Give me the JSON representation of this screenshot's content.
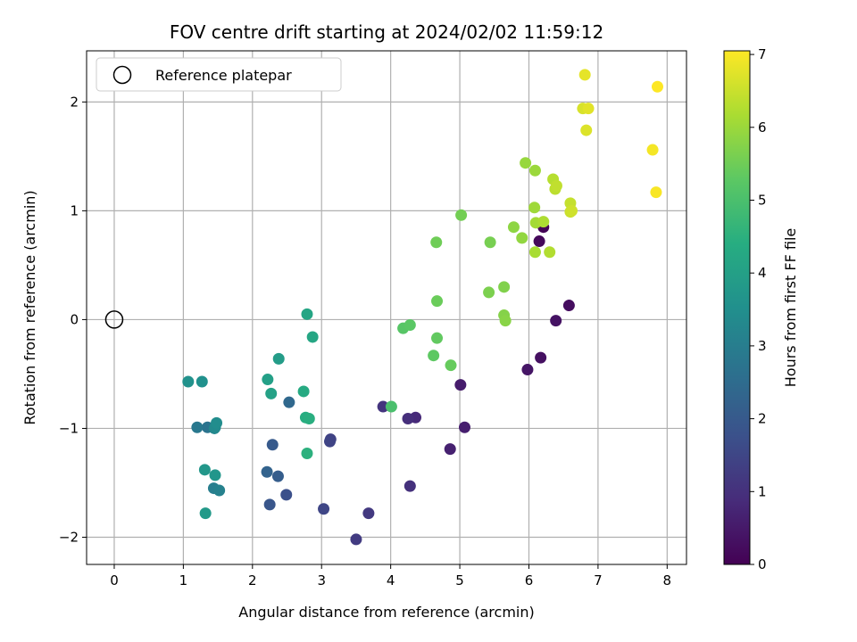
{
  "chart_data": {
    "type": "scatter",
    "title": "FOV centre drift starting at 2024/02/02 11:59:12",
    "xlabel": "Angular distance from reference (arcmin)",
    "ylabel": "Rotation from reference (arcmin)",
    "xlim": [
      -0.4,
      8.28
    ],
    "ylim": [
      -2.25,
      2.47
    ],
    "xticks": [
      0,
      1,
      2,
      3,
      4,
      5,
      6,
      7,
      8
    ],
    "yticks": [
      -2,
      -1,
      0,
      1,
      2
    ],
    "xtick_labels": [
      "0",
      "1",
      "2",
      "3",
      "4",
      "5",
      "6",
      "7",
      "8"
    ],
    "ytick_labels": [
      "−2",
      "−1",
      "0",
      "1",
      "2"
    ],
    "grid": true,
    "colormap": "viridis",
    "colorbar": {
      "label": "Hours from first FF file",
      "range": [
        0,
        7.05
      ],
      "ticks": [
        0,
        1,
        2,
        3,
        4,
        5,
        6,
        7
      ],
      "tick_labels": [
        "0",
        "1",
        "2",
        "3",
        "4",
        "5",
        "6",
        "7"
      ]
    },
    "legend": {
      "position": "upper-left",
      "entries": [
        {
          "label": "Reference platepar",
          "marker": "open-circle"
        }
      ]
    },
    "reference_point": {
      "x": 0,
      "y": 0,
      "label": "Reference platepar"
    },
    "series": [
      {
        "points": [
          {
            "x": 6.21,
            "y": 0.85,
            "c": 0.05
          },
          {
            "x": 6.15,
            "y": 0.72,
            "c": 0.15
          },
          {
            "x": 6.58,
            "y": 0.13,
            "c": 0.25
          },
          {
            "x": 6.39,
            "y": -0.01,
            "c": 0.35
          },
          {
            "x": 6.17,
            "y": -0.35,
            "c": 0.3
          },
          {
            "x": 5.98,
            "y": -0.46,
            "c": 0.4
          },
          {
            "x": 5.01,
            "y": -0.6,
            "c": 0.55
          },
          {
            "x": 5.07,
            "y": -0.99,
            "c": 0.6
          },
          {
            "x": 4.86,
            "y": -1.19,
            "c": 0.65
          },
          {
            "x": 4.36,
            "y": -0.9,
            "c": 0.85
          },
          {
            "x": 4.25,
            "y": -0.91,
            "c": 0.95
          },
          {
            "x": 4.28,
            "y": -1.53,
            "c": 1.0
          },
          {
            "x": 3.89,
            "y": -0.8,
            "c": 1.1
          },
          {
            "x": 3.68,
            "y": -1.78,
            "c": 1.2
          },
          {
            "x": 3.5,
            "y": -2.02,
            "c": 1.25
          },
          {
            "x": 3.13,
            "y": -1.1,
            "c": 1.4
          },
          {
            "x": 3.12,
            "y": -1.12,
            "c": 1.45
          },
          {
            "x": 3.03,
            "y": -1.74,
            "c": 1.5
          },
          {
            "x": 2.49,
            "y": -1.61,
            "c": 1.75
          },
          {
            "x": 2.25,
            "y": -1.7,
            "c": 1.9
          },
          {
            "x": 2.29,
            "y": -1.15,
            "c": 2.0
          },
          {
            "x": 2.37,
            "y": -1.44,
            "c": 2.1
          },
          {
            "x": 2.21,
            "y": -1.4,
            "c": 2.25
          },
          {
            "x": 2.53,
            "y": -0.76,
            "c": 2.4
          },
          {
            "x": 1.35,
            "y": -0.99,
            "c": 2.7
          },
          {
            "x": 1.2,
            "y": -0.99,
            "c": 2.85
          },
          {
            "x": 1.44,
            "y": -1.55,
            "c": 3.0
          },
          {
            "x": 1.52,
            "y": -1.57,
            "c": 3.1
          },
          {
            "x": 1.45,
            "y": -1.0,
            "c": 3.25
          },
          {
            "x": 1.46,
            "y": -0.99,
            "c": 3.35
          },
          {
            "x": 1.48,
            "y": -0.95,
            "c": 3.45
          },
          {
            "x": 1.27,
            "y": -0.57,
            "c": 3.55
          },
          {
            "x": 1.07,
            "y": -0.57,
            "c": 3.6
          },
          {
            "x": 1.46,
            "y": -1.43,
            "c": 3.7
          },
          {
            "x": 1.31,
            "y": -1.38,
            "c": 3.75
          },
          {
            "x": 1.32,
            "y": -1.78,
            "c": 3.8
          },
          {
            "x": 2.38,
            "y": -0.36,
            "c": 3.9
          },
          {
            "x": 2.22,
            "y": -0.55,
            "c": 4.0
          },
          {
            "x": 2.27,
            "y": -0.68,
            "c": 4.05
          },
          {
            "x": 2.79,
            "y": 0.05,
            "c": 4.15
          },
          {
            "x": 2.87,
            "y": -0.16,
            "c": 4.2
          },
          {
            "x": 2.74,
            "y": -0.66,
            "c": 4.3
          },
          {
            "x": 2.77,
            "y": -0.9,
            "c": 4.4
          },
          {
            "x": 2.82,
            "y": -0.91,
            "c": 4.45
          },
          {
            "x": 2.79,
            "y": -1.23,
            "c": 4.5
          },
          {
            "x": 4.01,
            "y": -0.8,
            "c": 5.0
          },
          {
            "x": 4.18,
            "y": -0.08,
            "c": 5.2
          },
          {
            "x": 4.28,
            "y": -0.05,
            "c": 5.25
          },
          {
            "x": 4.62,
            "y": -0.33,
            "c": 5.3
          },
          {
            "x": 4.67,
            "y": -0.17,
            "c": 5.35
          },
          {
            "x": 4.87,
            "y": -0.42,
            "c": 5.4
          },
          {
            "x": 4.67,
            "y": 0.17,
            "c": 5.45
          },
          {
            "x": 4.66,
            "y": 0.71,
            "c": 5.5
          },
          {
            "x": 5.02,
            "y": 0.96,
            "c": 5.55
          },
          {
            "x": 5.44,
            "y": 0.71,
            "c": 5.6
          },
          {
            "x": 5.42,
            "y": 0.25,
            "c": 5.65
          },
          {
            "x": 5.64,
            "y": 0.3,
            "c": 5.7
          },
          {
            "x": 5.64,
            "y": 0.04,
            "c": 5.75
          },
          {
            "x": 5.66,
            "y": -0.01,
            "c": 5.8
          },
          {
            "x": 5.78,
            "y": 0.85,
            "c": 5.85
          },
          {
            "x": 5.9,
            "y": 0.75,
            "c": 5.9
          },
          {
            "x": 5.95,
            "y": 1.44,
            "c": 5.95
          },
          {
            "x": 6.09,
            "y": 1.37,
            "c": 6.0
          },
          {
            "x": 6.08,
            "y": 1.03,
            "c": 6.05
          },
          {
            "x": 6.1,
            "y": 0.89,
            "c": 6.1
          },
          {
            "x": 6.09,
            "y": 0.62,
            "c": 6.15
          },
          {
            "x": 6.21,
            "y": 0.9,
            "c": 6.2
          },
          {
            "x": 6.3,
            "y": 0.62,
            "c": 6.25
          },
          {
            "x": 6.35,
            "y": 1.29,
            "c": 6.3
          },
          {
            "x": 6.38,
            "y": 1.2,
            "c": 6.35
          },
          {
            "x": 6.4,
            "y": 1.23,
            "c": 6.4
          },
          {
            "x": 6.6,
            "y": 1.07,
            "c": 6.45
          },
          {
            "x": 6.6,
            "y": 0.99,
            "c": 6.5
          },
          {
            "x": 6.62,
            "y": 1.0,
            "c": 6.55
          },
          {
            "x": 6.78,
            "y": 1.94,
            "c": 6.65
          },
          {
            "x": 6.83,
            "y": 1.74,
            "c": 6.7
          },
          {
            "x": 6.86,
            "y": 1.94,
            "c": 6.75
          },
          {
            "x": 6.81,
            "y": 2.25,
            "c": 6.8
          },
          {
            "x": 7.79,
            "y": 1.56,
            "c": 6.95
          },
          {
            "x": 7.84,
            "y": 1.17,
            "c": 7.0
          },
          {
            "x": 7.86,
            "y": 2.14,
            "c": 7.05
          }
        ]
      }
    ]
  }
}
